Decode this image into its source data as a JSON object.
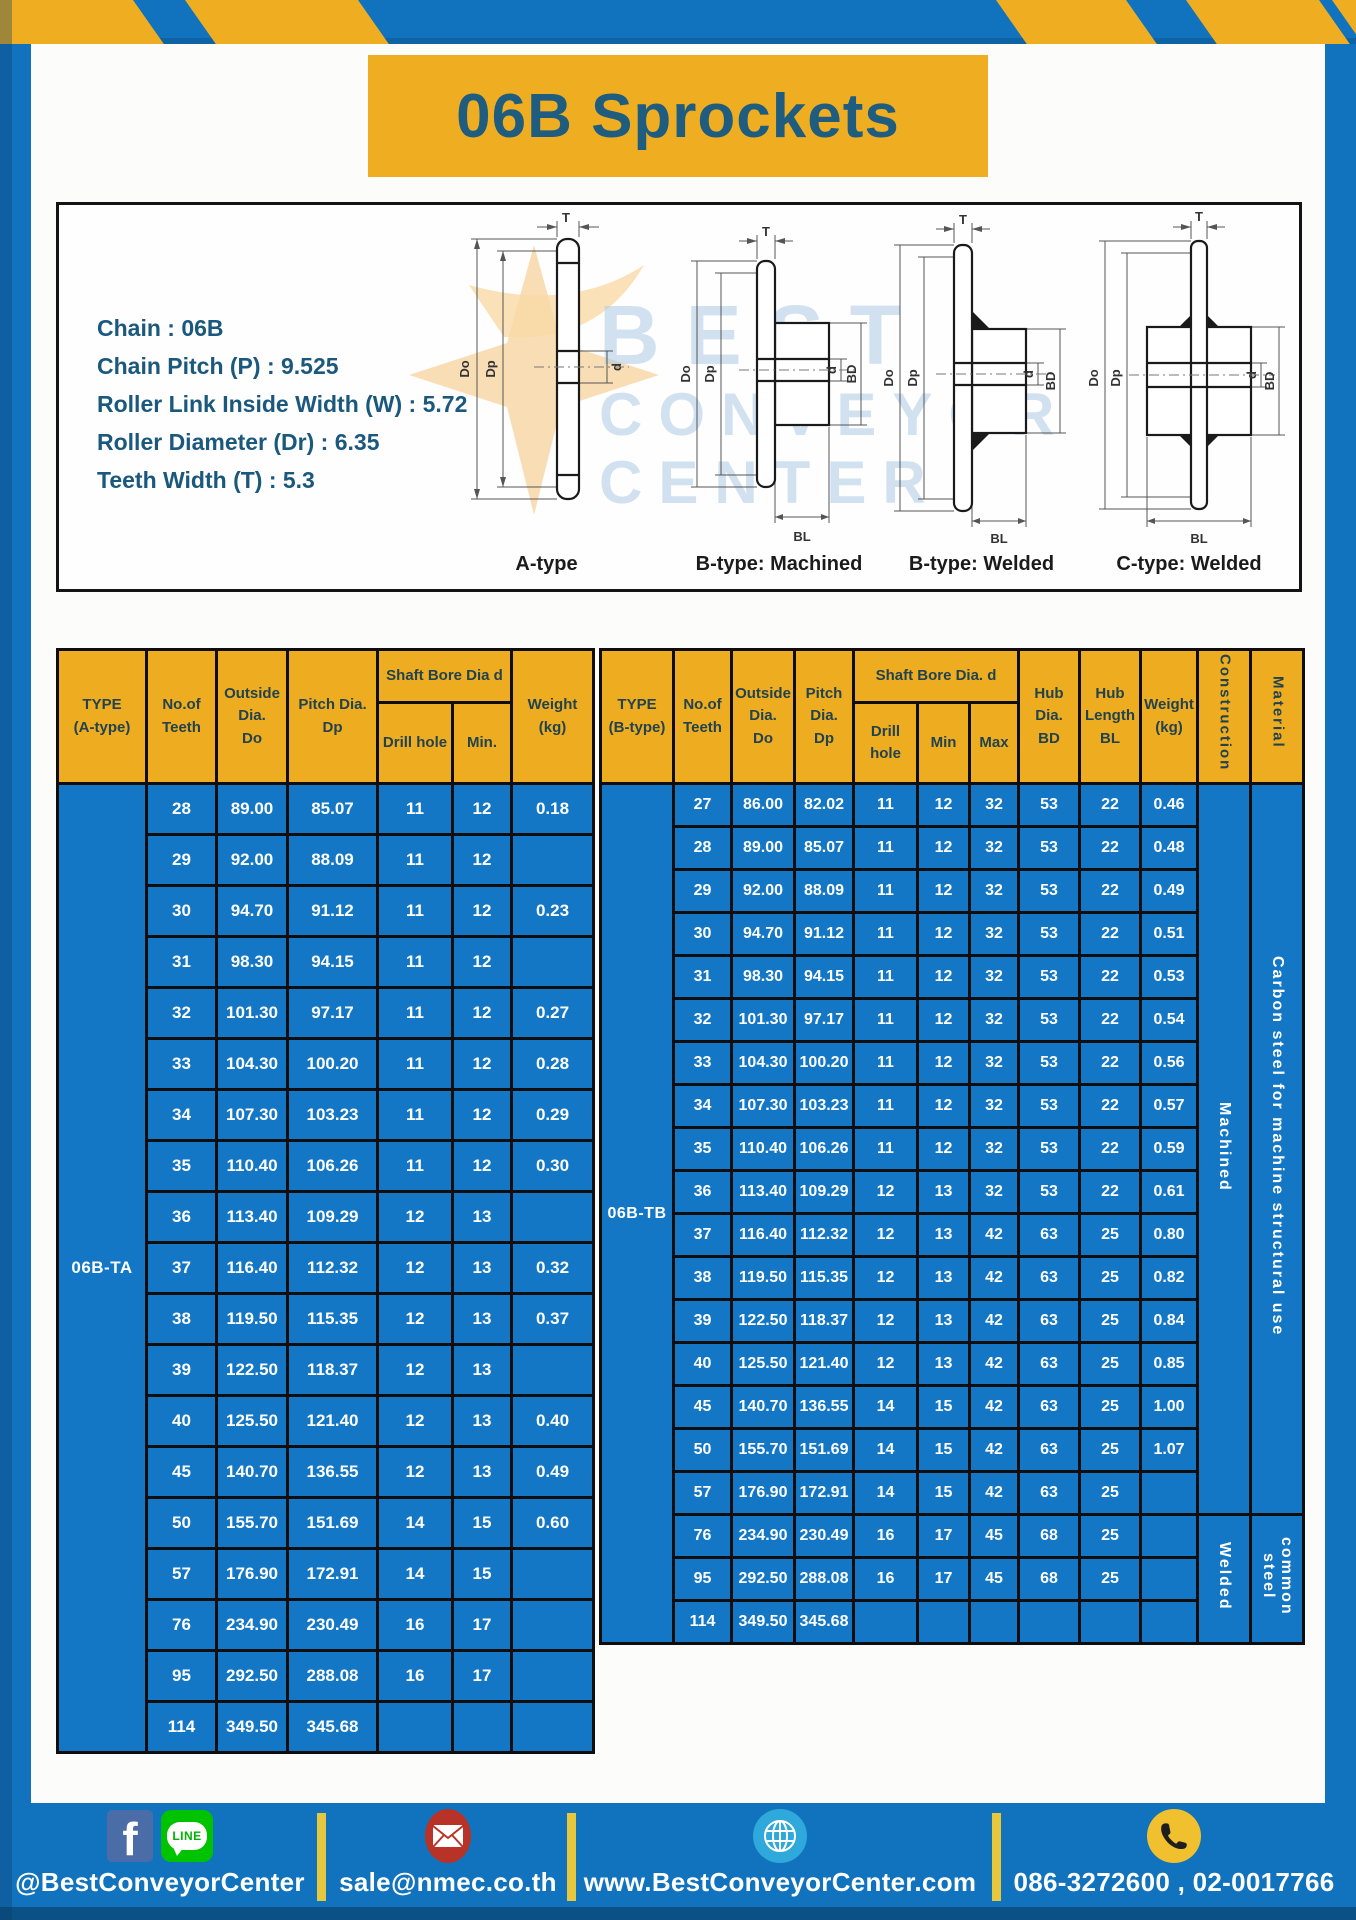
{
  "banner": {
    "title": "06B Sprockets"
  },
  "spec_panel": {
    "lines": [
      "Chain : 06B",
      "Chain Pitch (P) : 9.525",
      "Roller Link Inside Width (W) : 5.72",
      "Roller Diameter (Dr) : 6.35",
      "Teeth Width (T) : 5.3"
    ],
    "watermark": {
      "line1": "BEST",
      "line2": "CONVEYOR",
      "line3": "CENTER"
    },
    "dim_labels": {
      "T": "T",
      "Do": "Do",
      "Dp": "Dp",
      "d": "d",
      "BD": "BD",
      "BL": "BL"
    },
    "diagrams": [
      {
        "caption": "A-type"
      },
      {
        "caption": "B-type: Machined"
      },
      {
        "caption": "B-type: Welded"
      },
      {
        "caption": "C-type: Welded"
      }
    ]
  },
  "table_a": {
    "type_label": "06B-TA",
    "header": {
      "col_type": [
        "TYPE",
        "(A-type)"
      ],
      "col_teeth": [
        "No.of",
        "Teeth"
      ],
      "col_outside": [
        "Outside",
        "Dia.",
        "Do"
      ],
      "col_pitch": [
        "Pitch Dia.",
        "Dp"
      ],
      "col_bore_group": "Shaft Bore Dia d",
      "col_drill": "Drill hole",
      "col_min": "Min.",
      "col_weight": [
        "Weight",
        "(kg)"
      ]
    },
    "rows": [
      [
        "28",
        "89.00",
        "85.07",
        "11",
        "12",
        "0.18"
      ],
      [
        "29",
        "92.00",
        "88.09",
        "11",
        "12",
        ""
      ],
      [
        "30",
        "94.70",
        "91.12",
        "11",
        "12",
        "0.23"
      ],
      [
        "31",
        "98.30",
        "94.15",
        "11",
        "12",
        ""
      ],
      [
        "32",
        "101.30",
        "97.17",
        "11",
        "12",
        "0.27"
      ],
      [
        "33",
        "104.30",
        "100.20",
        "11",
        "12",
        "0.28"
      ],
      [
        "34",
        "107.30",
        "103.23",
        "11",
        "12",
        "0.29"
      ],
      [
        "35",
        "110.40",
        "106.26",
        "11",
        "12",
        "0.30"
      ],
      [
        "36",
        "113.40",
        "109.29",
        "12",
        "13",
        ""
      ],
      [
        "37",
        "116.40",
        "112.32",
        "12",
        "13",
        "0.32"
      ],
      [
        "38",
        "119.50",
        "115.35",
        "12",
        "13",
        "0.37"
      ],
      [
        "39",
        "122.50",
        "118.37",
        "12",
        "13",
        ""
      ],
      [
        "40",
        "125.50",
        "121.40",
        "12",
        "13",
        "0.40"
      ],
      [
        "45",
        "140.70",
        "136.55",
        "12",
        "13",
        "0.49"
      ],
      [
        "50",
        "155.70",
        "151.69",
        "14",
        "15",
        "0.60"
      ],
      [
        "57",
        "176.90",
        "172.91",
        "14",
        "15",
        ""
      ],
      [
        "76",
        "234.90",
        "230.49",
        "16",
        "17",
        ""
      ],
      [
        "95",
        "292.50",
        "288.08",
        "16",
        "17",
        ""
      ],
      [
        "114",
        "349.50",
        "345.68",
        "",
        "",
        ""
      ]
    ]
  },
  "table_b": {
    "type_label": "06B-TB",
    "header": {
      "col_type": [
        "TYPE",
        "(B-type)"
      ],
      "col_teeth": [
        "No.of",
        "Teeth"
      ],
      "col_outside": [
        "Outside",
        "Dia.",
        "Do"
      ],
      "col_pitch": [
        "Pitch",
        "Dia.",
        "Dp"
      ],
      "col_bore_group": "Shaft Bore Dia. d",
      "col_drill": "Drill hole",
      "col_min": "Min",
      "col_max": "Max",
      "col_hub_dia": [
        "Hub",
        "Dia.",
        "BD"
      ],
      "col_hub_len": [
        "Hub",
        "Length",
        "BL"
      ],
      "col_weight": [
        "Weight",
        "(kg)"
      ],
      "col_construction": "Construction",
      "col_material": "Material"
    },
    "rows": [
      [
        "27",
        "86.00",
        "82.02",
        "11",
        "12",
        "32",
        "53",
        "22",
        "0.46"
      ],
      [
        "28",
        "89.00",
        "85.07",
        "11",
        "12",
        "32",
        "53",
        "22",
        "0.48"
      ],
      [
        "29",
        "92.00",
        "88.09",
        "11",
        "12",
        "32",
        "53",
        "22",
        "0.49"
      ],
      [
        "30",
        "94.70",
        "91.12",
        "11",
        "12",
        "32",
        "53",
        "22",
        "0.51"
      ],
      [
        "31",
        "98.30",
        "94.15",
        "11",
        "12",
        "32",
        "53",
        "22",
        "0.53"
      ],
      [
        "32",
        "101.30",
        "97.17",
        "11",
        "12",
        "32",
        "53",
        "22",
        "0.54"
      ],
      [
        "33",
        "104.30",
        "100.20",
        "11",
        "12",
        "32",
        "53",
        "22",
        "0.56"
      ],
      [
        "34",
        "107.30",
        "103.23",
        "11",
        "12",
        "32",
        "53",
        "22",
        "0.57"
      ],
      [
        "35",
        "110.40",
        "106.26",
        "11",
        "12",
        "32",
        "53",
        "22",
        "0.59"
      ],
      [
        "36",
        "113.40",
        "109.29",
        "12",
        "13",
        "32",
        "53",
        "22",
        "0.61"
      ],
      [
        "37",
        "116.40",
        "112.32",
        "12",
        "13",
        "42",
        "63",
        "25",
        "0.80"
      ],
      [
        "38",
        "119.50",
        "115.35",
        "12",
        "13",
        "42",
        "63",
        "25",
        "0.82"
      ],
      [
        "39",
        "122.50",
        "118.37",
        "12",
        "13",
        "42",
        "63",
        "25",
        "0.84"
      ],
      [
        "40",
        "125.50",
        "121.40",
        "12",
        "13",
        "42",
        "63",
        "25",
        "0.85"
      ],
      [
        "45",
        "140.70",
        "136.55",
        "14",
        "15",
        "42",
        "63",
        "25",
        "1.00"
      ],
      [
        "50",
        "155.70",
        "151.69",
        "14",
        "15",
        "42",
        "63",
        "25",
        "1.07"
      ],
      [
        "57",
        "176.90",
        "172.91",
        "14",
        "15",
        "42",
        "63",
        "25",
        ""
      ],
      [
        "76",
        "234.90",
        "230.49",
        "16",
        "17",
        "45",
        "68",
        "25",
        ""
      ],
      [
        "95",
        "292.50",
        "288.08",
        "16",
        "17",
        "45",
        "68",
        "25",
        ""
      ],
      [
        "114",
        "349.50",
        "345.68",
        "",
        "",
        "",
        "",
        "",
        ""
      ]
    ],
    "construction_groups": [
      {
        "label": "Machined",
        "span": 17
      },
      {
        "label": "Welded",
        "span": 3
      }
    ],
    "material_groups": [
      {
        "label": "Carbon steel for machine structural use",
        "span": 17
      },
      {
        "label": "common steel",
        "span": 3
      }
    ]
  },
  "footer": {
    "icon_glyphs": {
      "facebook": "f",
      "line": "LINE"
    },
    "sections": [
      {
        "text": "@BestConveyorCenter"
      },
      {
        "text": "sale@nmec.co.th"
      },
      {
        "text": "www.BestConveyorCenter.com"
      },
      {
        "text": "086-3272600 , 02-0017766"
      }
    ]
  },
  "colors": {
    "frame_blue": "#1173BD",
    "cell_blue": "#1377C6",
    "accent_yellow": "#EFAE21",
    "navy_text": "#1E5C80"
  }
}
